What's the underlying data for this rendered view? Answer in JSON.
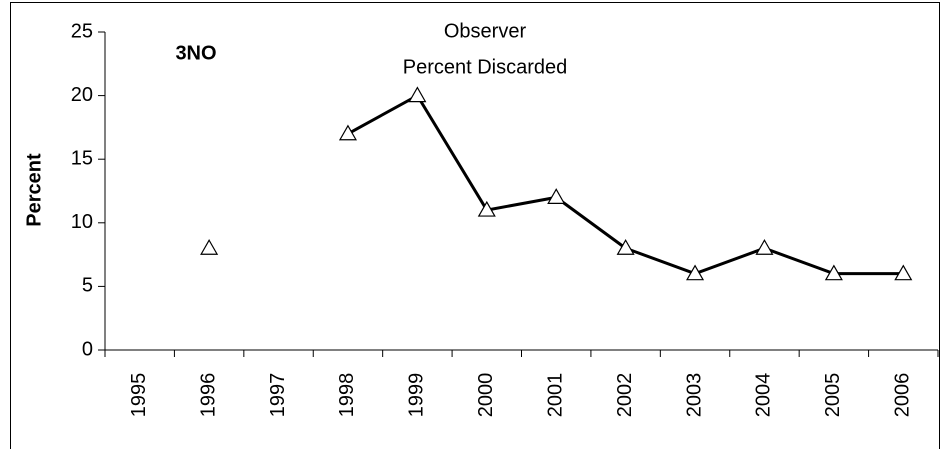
{
  "chart_data": {
    "type": "line",
    "title": "Observer",
    "subtitle": "Percent Discarded",
    "annotation": "3NO",
    "y_label": "Percent",
    "categories": [
      "1995",
      "1996",
      "1997",
      "1998",
      "1999",
      "2000",
      "2001",
      "2002",
      "2003",
      "2004",
      "2005",
      "2006"
    ],
    "series": [
      {
        "name": "3NO",
        "color": "#000000",
        "values": [
          null,
          8,
          null,
          17,
          20,
          11,
          12,
          8,
          6,
          8,
          6,
          6
        ]
      }
    ],
    "ylim": [
      0,
      25
    ],
    "yticks": [
      0,
      5,
      10,
      15,
      20,
      25
    ],
    "grid": false,
    "marker": "triangle"
  }
}
